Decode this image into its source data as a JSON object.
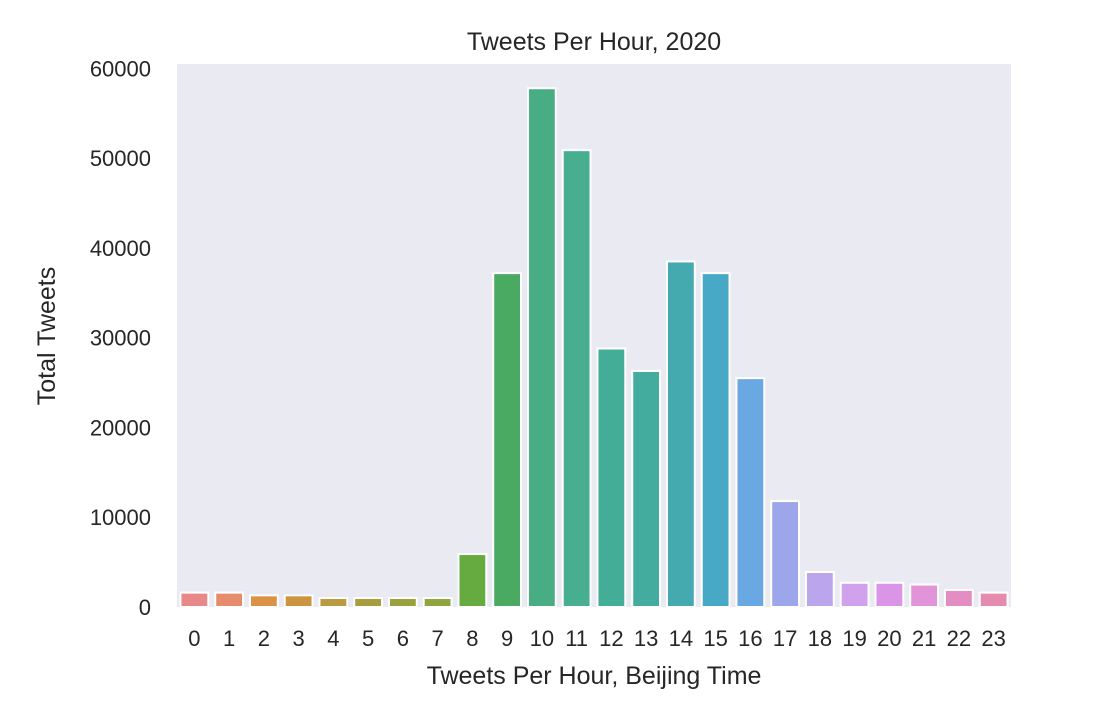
{
  "chart_data": {
    "type": "bar",
    "title": "Tweets Per Hour, 2020",
    "xlabel": "Tweets Per Hour, Beijing Time",
    "ylabel": "Total Tweets",
    "ylim": [
      0,
      60500
    ],
    "yticks": [
      0,
      10000,
      20000,
      30000,
      40000,
      50000,
      60000
    ],
    "grid": false,
    "categories": [
      "0",
      "1",
      "2",
      "3",
      "4",
      "5",
      "6",
      "7",
      "8",
      "9",
      "10",
      "11",
      "12",
      "13",
      "14",
      "15",
      "16",
      "17",
      "18",
      "19",
      "20",
      "21",
      "22",
      "23"
    ],
    "values": [
      1600,
      1600,
      1300,
      1300,
      1000,
      1000,
      1000,
      1000,
      5900,
      37200,
      57800,
      50900,
      28800,
      26300,
      38500,
      37200,
      25500,
      11800,
      3900,
      2700,
      2700,
      2500,
      1900,
      1600
    ],
    "colors": [
      "#e88888",
      "#e68c6c",
      "#db9146",
      "#cd9440",
      "#b99a3e",
      "#a79d3d",
      "#9aa03c",
      "#8ea43d",
      "#66ab3f",
      "#4aaa62",
      "#49ad84",
      "#47ae8f",
      "#43ad98",
      "#44ab9f",
      "#44aab0",
      "#48a9c7",
      "#6aa8e3",
      "#9ea6eb",
      "#bba5ec",
      "#d0a1ec",
      "#db95e6",
      "#e194d7",
      "#e48dc3",
      "#e68bb0"
    ],
    "plot_bg": "#eaeaf2",
    "bar_edge": "#ffffff"
  }
}
